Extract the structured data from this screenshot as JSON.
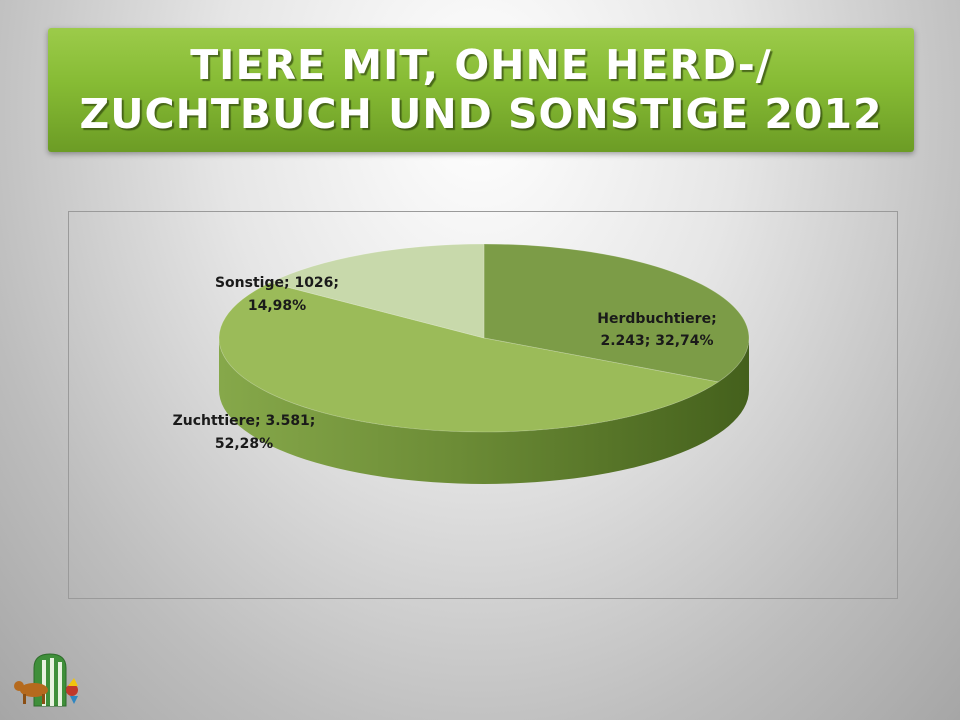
{
  "title": {
    "line1": "TIERE MIT, OHNE HERD-/",
    "line2": "ZUCHTBUCH UND SONSTIGE 2012"
  },
  "colors": {
    "banner": "#86bb34",
    "slice_herdbuch": "#7c9c47",
    "slice_zucht": "#9bbb59",
    "slice_sonstige": "#c8d9ab",
    "side_dark": "#4e6b24"
  },
  "chart_data": {
    "type": "pie",
    "style": "3d",
    "title": "",
    "slices": [
      {
        "name": "Herdbuchtiere",
        "value": 2243,
        "percent": 32.74,
        "label_line1": "Herdbuchtiere;",
        "label_line2": "2.243; 32,74%"
      },
      {
        "name": "Zuchttiere",
        "value": 3581,
        "percent": 52.28,
        "label_line1": "Zuchttiere; 3.581;",
        "label_line2": "52,28%"
      },
      {
        "name": "Sonstige",
        "value": 1026,
        "percent": 14.98,
        "label_line1": "Sonstige; 1026;",
        "label_line2": "14,98%"
      }
    ]
  },
  "logo": {
    "icon": "cow-and-rooster-logo"
  }
}
